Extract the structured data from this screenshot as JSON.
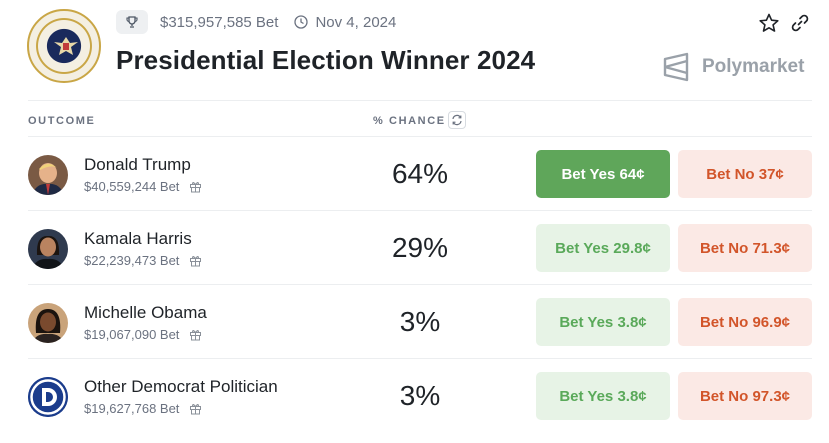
{
  "header": {
    "volume": "$315,957,585 Bet",
    "date": "Nov 4, 2024",
    "title": "Presidential Election Winner 2024",
    "brand": "Polymarket",
    "icons": {
      "trophy": "trophy-icon",
      "clock": "clock-icon",
      "star": "star-icon",
      "link": "link-icon",
      "brand": "polymarket-logo-icon"
    }
  },
  "table": {
    "col_outcome": "OUTCOME",
    "col_chance": "% CHANCE",
    "rows": [
      {
        "name": "Donald Trump",
        "volume": "$40,559,244 Bet",
        "chance": "64%",
        "yes": "Bet Yes 64¢",
        "no": "Bet No 37¢",
        "avatar": "avatar-trump"
      },
      {
        "name": "Kamala Harris",
        "volume": "$22,239,473 Bet",
        "chance": "29%",
        "yes": "Bet Yes 29.8¢",
        "no": "Bet No 71.3¢",
        "avatar": "avatar-harris"
      },
      {
        "name": "Michelle Obama",
        "volume": "$19,067,090 Bet",
        "chance": "3%",
        "yes": "Bet Yes 3.8¢",
        "no": "Bet No 96.9¢",
        "avatar": "avatar-obama"
      },
      {
        "name": "Other Democrat Politician",
        "volume": "$19,627,768 Bet",
        "chance": "3%",
        "yes": "Bet Yes 3.8¢",
        "no": "Bet No 97.3¢",
        "avatar": "democrat-logo-icon"
      }
    ]
  },
  "colors": {
    "yes_active": "#5fa65a",
    "yes_bg": "#e7f3e6",
    "yes_text": "#5aa95a",
    "no_bg": "#fbe9e5",
    "no_text": "#d2552a"
  }
}
